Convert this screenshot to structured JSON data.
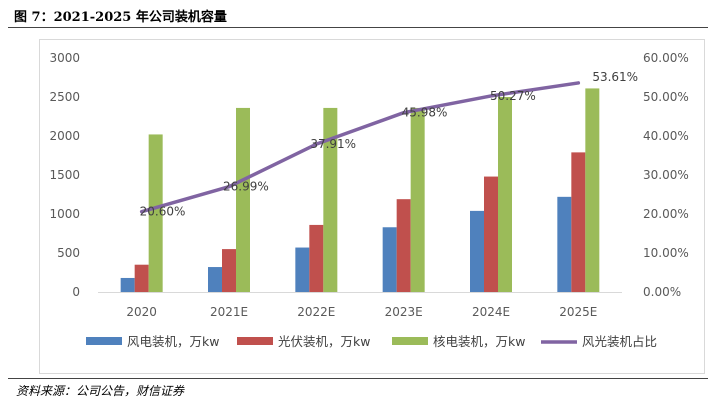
{
  "figure": {
    "title": "图 7：2021-2025 年公司装机容量",
    "source": "资料来源：公司公告，财信证券"
  },
  "chart_data": {
    "type": "bar",
    "categories": [
      "2020",
      "2021E",
      "2022E",
      "2023E",
      "2024E",
      "2025E"
    ],
    "series": [
      {
        "name": "风电装机，万kw",
        "type": "bar",
        "color": "#4f81bd",
        "values": [
          180,
          320,
          570,
          830,
          1040,
          1220
        ]
      },
      {
        "name": "光伏装机，万kw",
        "type": "bar",
        "color": "#c0504d",
        "values": [
          350,
          550,
          860,
          1190,
          1480,
          1790
        ]
      },
      {
        "name": "核电装机，万kw",
        "type": "bar",
        "color": "#9bbb59",
        "values": [
          2020,
          2360,
          2360,
          2360,
          2500,
          2610
        ]
      },
      {
        "name": "风光装机占比",
        "type": "line",
        "axis": "right",
        "color": "#8064a2",
        "values": [
          0.206,
          0.2699,
          0.3791,
          0.4598,
          0.5027,
          0.5361
        ],
        "labels": [
          "20.60%",
          "26.99%",
          "37.91%",
          "45.98%",
          "50.27%",
          "53.61%"
        ]
      }
    ],
    "y_left": {
      "min": 0,
      "max": 3000,
      "step": 500,
      "ticks": [
        "0",
        "500",
        "1000",
        "1500",
        "2000",
        "2500",
        "3000"
      ]
    },
    "y_right": {
      "min": 0,
      "max": 0.6,
      "step": 0.1,
      "ticks": [
        "0.00%",
        "10.00%",
        "20.00%",
        "30.00%",
        "40.00%",
        "50.00%",
        "60.00%"
      ]
    },
    "grid": false,
    "legend": "bottom"
  }
}
